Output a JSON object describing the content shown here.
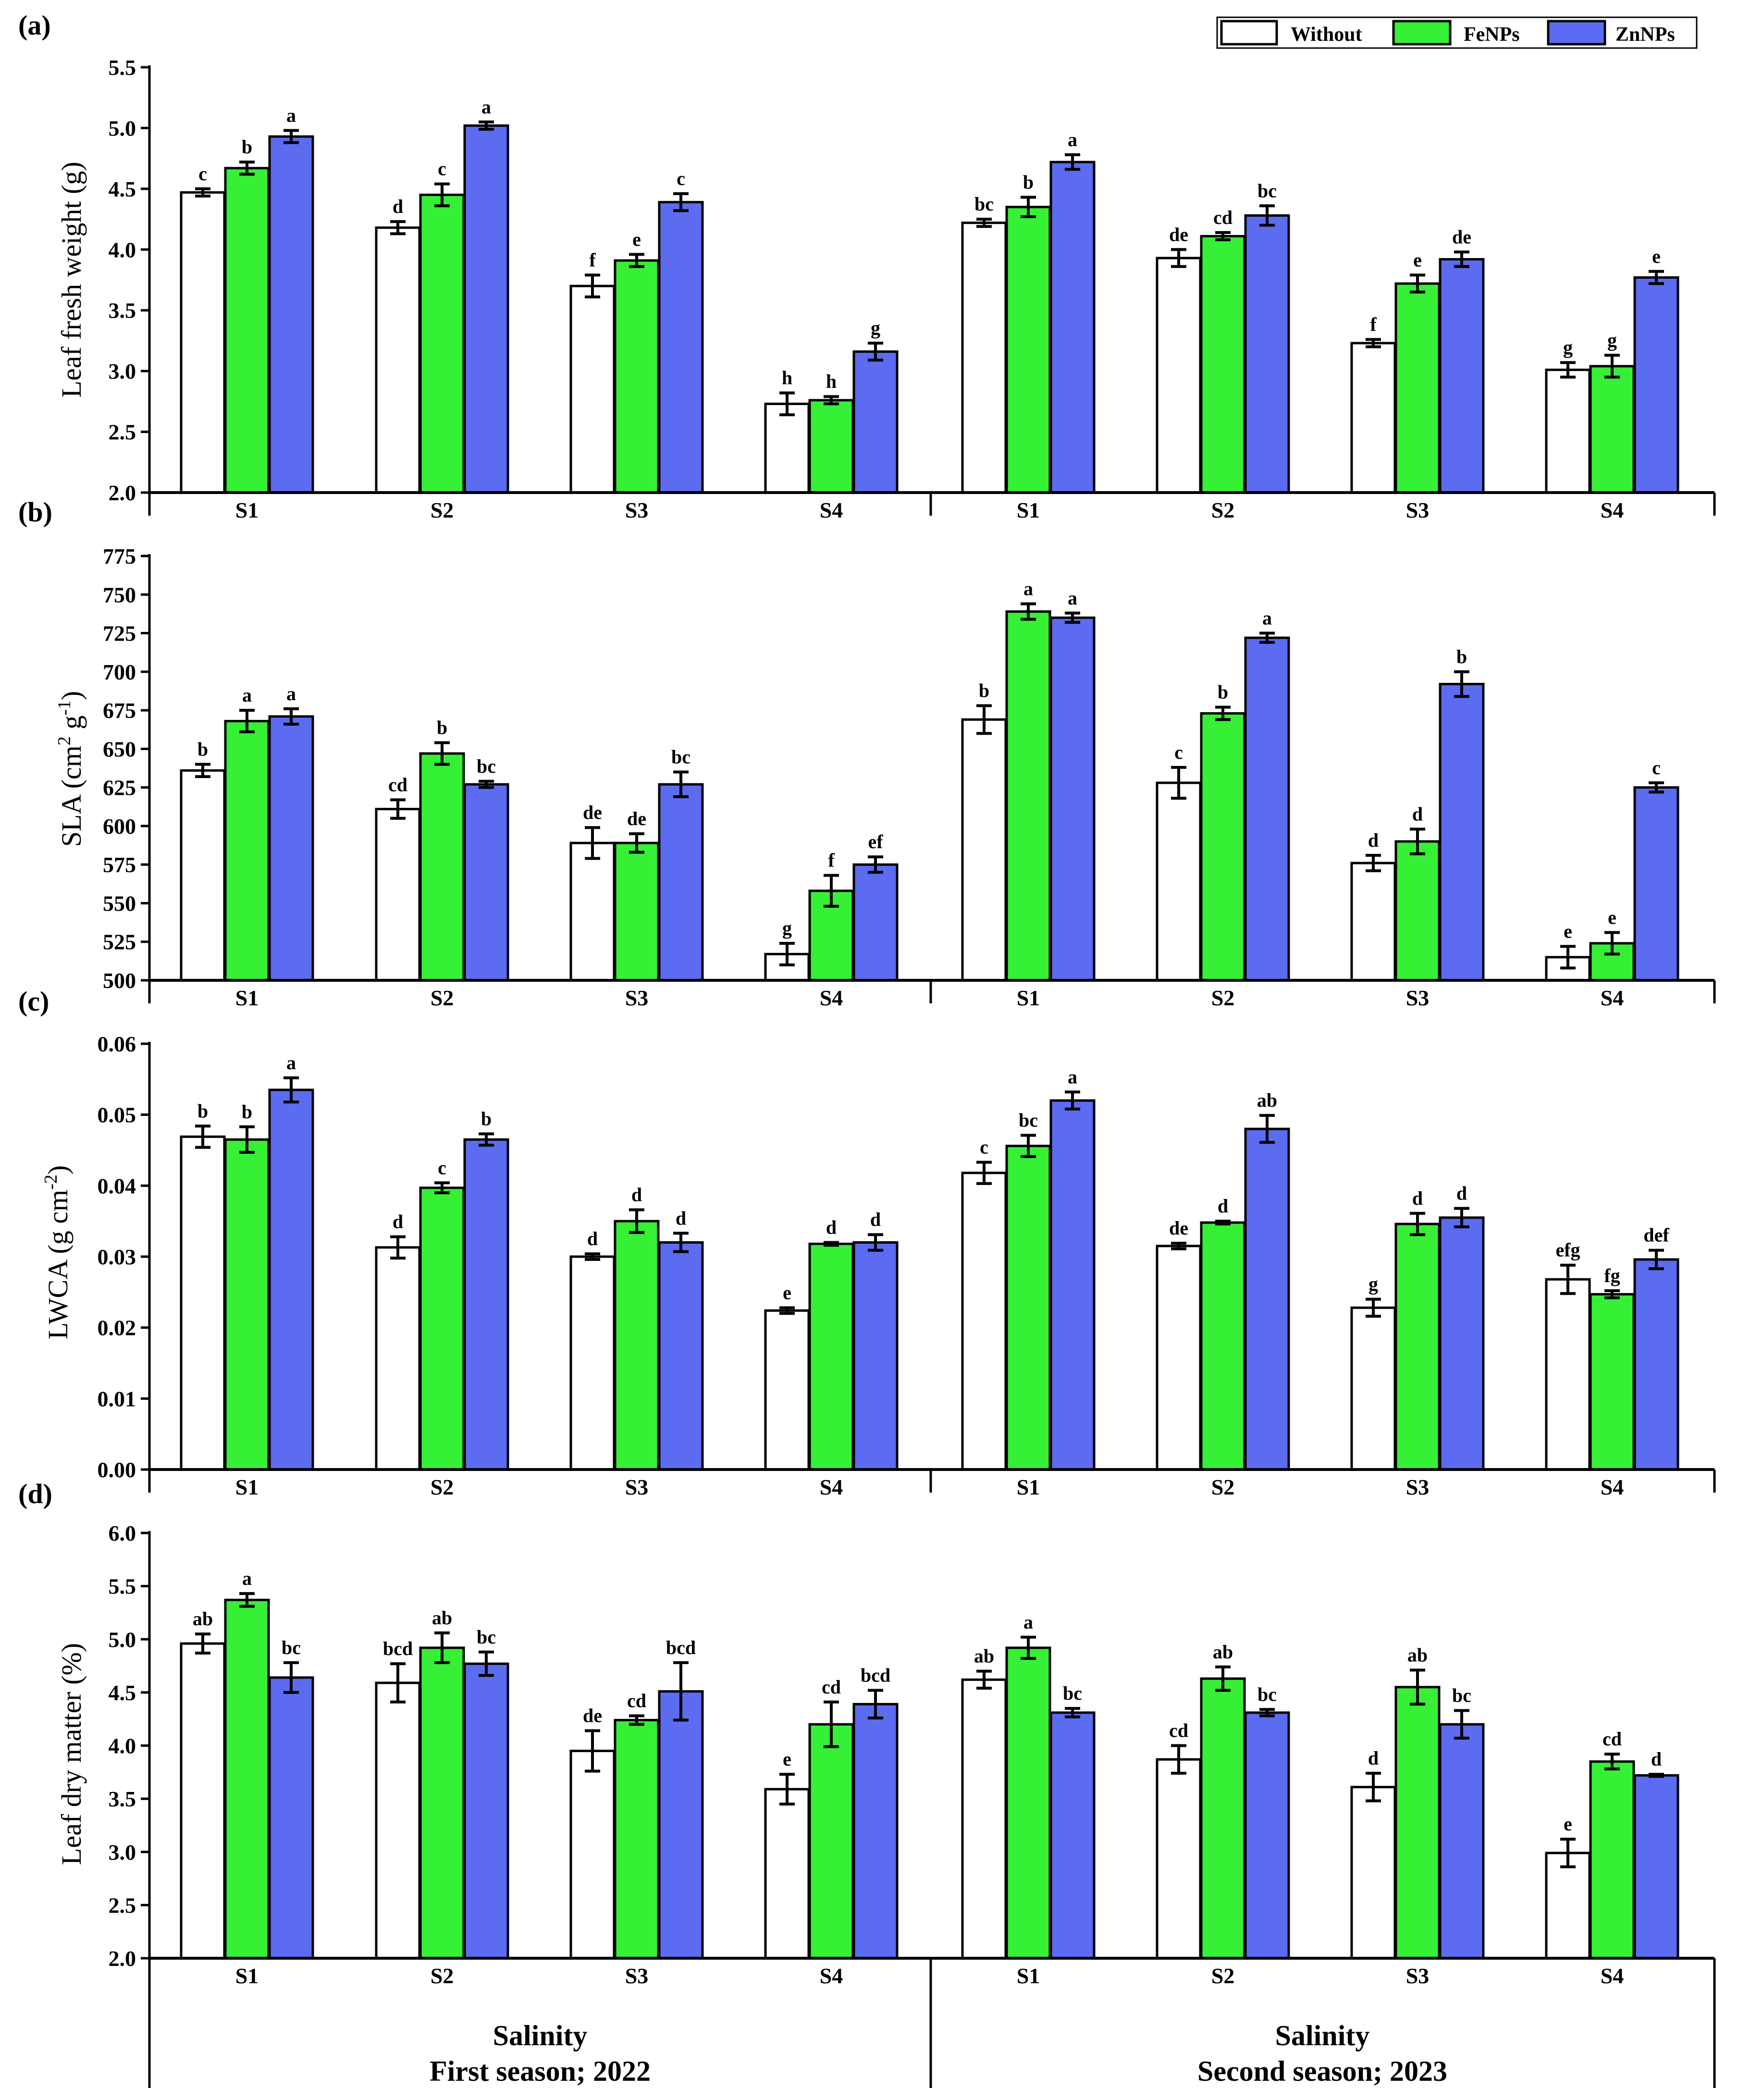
{
  "legend": [
    {
      "label": "Without",
      "color": "#ffffff"
    },
    {
      "label": "FeNPs",
      "color": "#35f035"
    },
    {
      "label": "ZnNPs",
      "color": "#5b6cf0"
    }
  ],
  "footer": {
    "left_line1": "Salinity",
    "left_line2": "First season; 2022",
    "right_line1": "Salinity",
    "right_line2": "Second season; 2023"
  },
  "chart_data": [
    {
      "type": "bar",
      "panel": "(a)",
      "ylabel": "Leaf fresh weight (g)",
      "ylim": [
        2.0,
        5.5
      ],
      "yticks": [
        "2.0",
        "2.5",
        "3.0",
        "3.5",
        "4.0",
        "4.5",
        "5.0",
        "5.5"
      ],
      "categories": [
        "S1",
        "S2",
        "S3",
        "S4",
        "S1",
        "S2",
        "S3",
        "S4"
      ],
      "series": [
        {
          "name": "Without",
          "values": [
            4.47,
            4.18,
            3.7,
            2.73,
            4.22,
            3.93,
            3.23,
            3.01
          ],
          "errors": [
            0.03,
            0.05,
            0.09,
            0.09,
            0.03,
            0.07,
            0.03,
            0.06
          ],
          "labels": [
            "c",
            "d",
            "f",
            "h",
            "bc",
            "de",
            "f",
            "g"
          ]
        },
        {
          "name": "FeNPs",
          "values": [
            4.67,
            4.45,
            3.91,
            2.76,
            4.35,
            4.11,
            3.72,
            3.04
          ],
          "errors": [
            0.05,
            0.09,
            0.05,
            0.03,
            0.08,
            0.03,
            0.07,
            0.09
          ],
          "labels": [
            "b",
            "c",
            "e",
            "h",
            "b",
            "cd",
            "e",
            "g"
          ]
        },
        {
          "name": "ZnNPs",
          "values": [
            4.93,
            5.02,
            4.39,
            3.16,
            4.72,
            4.28,
            3.92,
            3.77
          ],
          "errors": [
            0.05,
            0.03,
            0.07,
            0.07,
            0.06,
            0.08,
            0.06,
            0.05
          ],
          "labels": [
            "a",
            "a",
            "c",
            "g",
            "a",
            "bc",
            "de",
            "e"
          ]
        }
      ]
    },
    {
      "type": "bar",
      "panel": "(b)",
      "ylabel_main": "SLA (cm",
      "ylabel_sup1": "2",
      "ylabel_mid": " g",
      "ylabel_sup2": "-1",
      "ylabel_end": ")",
      "ylim": [
        500,
        775
      ],
      "yticks": [
        "500",
        "525",
        "550",
        "575",
        "600",
        "625",
        "650",
        "675",
        "700",
        "725",
        "750",
        "775"
      ],
      "categories": [
        "S1",
        "S2",
        "S3",
        "S4",
        "S1",
        "S2",
        "S3",
        "S4"
      ],
      "series": [
        {
          "name": "Without",
          "values": [
            636,
            611,
            589,
            517,
            669,
            628,
            576,
            515
          ],
          "errors": [
            4,
            6,
            10,
            7,
            9,
            10,
            5,
            7
          ],
          "labels": [
            "b",
            "cd",
            "de",
            "g",
            "b",
            "c",
            "d",
            "e"
          ]
        },
        {
          "name": "FeNPs",
          "values": [
            668,
            647,
            589,
            558,
            739,
            673,
            590,
            524
          ],
          "errors": [
            7,
            7,
            6,
            10,
            5,
            4,
            8,
            7
          ],
          "labels": [
            "a",
            "b",
            "de",
            "f",
            "a",
            "b",
            "d",
            "e"
          ]
        },
        {
          "name": "ZnNPs",
          "values": [
            671,
            627,
            627,
            575,
            735,
            722,
            692,
            625
          ],
          "errors": [
            5,
            2,
            8,
            5,
            3,
            3,
            8,
            3
          ],
          "labels": [
            "a",
            "bc",
            "bc",
            "ef",
            "a",
            "a",
            "b",
            "c"
          ]
        }
      ]
    },
    {
      "type": "bar",
      "panel": "(c)",
      "ylabel_main": "LWCA (g cm",
      "ylabel_sup": "-2",
      "ylabel_end": ")",
      "ylim": [
        0.0,
        0.06
      ],
      "yticks": [
        "0.00",
        "0.01",
        "0.02",
        "0.03",
        "0.04",
        "0.05",
        "0.06"
      ],
      "categories": [
        "S1",
        "S2",
        "S3",
        "S4",
        "S1",
        "S2",
        "S3",
        "S4"
      ],
      "series": [
        {
          "name": "Without",
          "values": [
            0.0469,
            0.0313,
            0.03,
            0.0224,
            0.0418,
            0.0315,
            0.0228,
            0.0268
          ],
          "errors": [
            0.0015,
            0.0015,
            0.0004,
            0.0004,
            0.0015,
            0.0004,
            0.0012,
            0.002
          ],
          "labels": [
            "b",
            "d",
            "d",
            "e",
            "c",
            "de",
            "g",
            "efg"
          ]
        },
        {
          "name": "FeNPs",
          "values": [
            0.0465,
            0.0397,
            0.035,
            0.0318,
            0.0456,
            0.0348,
            0.0346,
            0.0247
          ],
          "errors": [
            0.0018,
            0.0007,
            0.0016,
            0.0002,
            0.0015,
            0.0002,
            0.0015,
            0.0005
          ],
          "labels": [
            "b",
            "c",
            "d",
            "d",
            "bc",
            "d",
            "d",
            "fg"
          ]
        },
        {
          "name": "ZnNPs",
          "values": [
            0.0535,
            0.0465,
            0.032,
            0.032,
            0.052,
            0.048,
            0.0355,
            0.0296
          ],
          "errors": [
            0.0017,
            0.0008,
            0.0013,
            0.0011,
            0.0012,
            0.0019,
            0.0013,
            0.0013
          ],
          "labels": [
            "a",
            "b",
            "d",
            "d",
            "a",
            "ab",
            "d",
            "def"
          ]
        }
      ]
    },
    {
      "type": "bar",
      "panel": "(d)",
      "ylabel": "Leaf dry matter (%)",
      "ylim": [
        2.0,
        6.0
      ],
      "yticks": [
        "2.0",
        "2.5",
        "3.0",
        "3.5",
        "4.0",
        "4.5",
        "5.0",
        "5.5",
        "6.0"
      ],
      "categories": [
        "S1",
        "S2",
        "S3",
        "S4",
        "S1",
        "S2",
        "S3",
        "S4"
      ],
      "series": [
        {
          "name": "Without",
          "values": [
            4.96,
            4.59,
            3.95,
            3.59,
            4.62,
            3.87,
            3.61,
            2.99
          ],
          "errors": [
            0.09,
            0.18,
            0.19,
            0.14,
            0.08,
            0.13,
            0.13,
            0.13
          ],
          "labels": [
            "ab",
            "bcd",
            "de",
            "e",
            "ab",
            "cd",
            "d",
            "e"
          ]
        },
        {
          "name": "FeNPs",
          "values": [
            5.37,
            4.92,
            4.24,
            4.2,
            4.92,
            4.63,
            4.55,
            3.85
          ],
          "errors": [
            0.06,
            0.14,
            0.04,
            0.21,
            0.1,
            0.11,
            0.16,
            0.07
          ],
          "labels": [
            "a",
            "ab",
            "cd",
            "cd",
            "a",
            "ab",
            "ab",
            "cd"
          ]
        },
        {
          "name": "ZnNPs",
          "values": [
            4.64,
            4.77,
            4.51,
            4.39,
            4.31,
            4.31,
            4.2,
            3.72
          ],
          "errors": [
            0.14,
            0.11,
            0.27,
            0.13,
            0.04,
            0.03,
            0.13,
            0.01
          ],
          "labels": [
            "bc",
            "bc",
            "bcd",
            "bcd",
            "bc",
            "bc",
            "bc",
            "d"
          ]
        }
      ]
    }
  ]
}
